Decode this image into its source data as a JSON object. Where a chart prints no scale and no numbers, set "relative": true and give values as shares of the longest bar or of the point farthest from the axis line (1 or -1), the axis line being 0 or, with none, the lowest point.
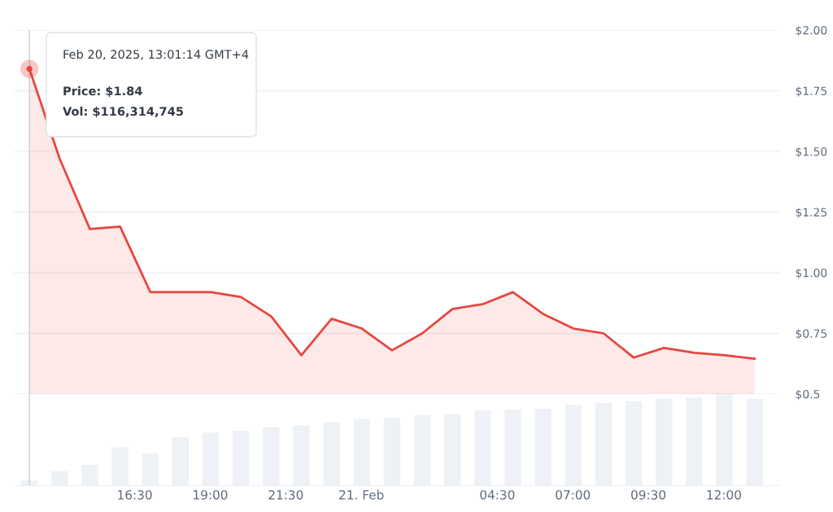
{
  "chart_data": [
    {
      "type": "area",
      "color": "#e5473f",
      "x": [
        "2025-02-20T13:01",
        "2025-02-20T14:01",
        "2025-02-20T15:01",
        "2025-02-20T16:01",
        "2025-02-20T17:01",
        "2025-02-20T18:01",
        "2025-02-20T19:01",
        "2025-02-20T20:01",
        "2025-02-20T21:01",
        "2025-02-20T22:01",
        "2025-02-20T23:01",
        "2025-02-21T00:01",
        "2025-02-21T01:01",
        "2025-02-21T02:01",
        "2025-02-21T03:01",
        "2025-02-21T04:01",
        "2025-02-21T05:01",
        "2025-02-21T06:01",
        "2025-02-21T07:01",
        "2025-02-21T08:01",
        "2025-02-21T09:01",
        "2025-02-21T10:01",
        "2025-02-21T11:01",
        "2025-02-21T12:01",
        "2025-02-21T13:01"
      ],
      "values": [
        1.84,
        1.47,
        1.18,
        1.19,
        0.92,
        0.92,
        0.92,
        0.9,
        0.82,
        0.66,
        0.81,
        0.77,
        0.68,
        0.75,
        0.85,
        0.87,
        0.92,
        0.83,
        0.77,
        0.75,
        0.65,
        0.69,
        0.67,
        0.66,
        0.645
      ],
      "xlim": [
        "2025-02-20T12:30",
        "2025-02-21T13:50"
      ],
      "ylim": [
        0.5,
        2.0
      ],
      "yticks": [
        {
          "value": 0.5,
          "label": "$0.5"
        },
        {
          "value": 0.75,
          "label": "$0.75"
        },
        {
          "value": 1.0,
          "label": "$1.00"
        },
        {
          "value": 1.25,
          "label": "$1.25"
        },
        {
          "value": 1.5,
          "label": "$1.50"
        },
        {
          "value": 1.75,
          "label": "$1.75"
        },
        {
          "value": 2.0,
          "label": "$2.00"
        }
      ],
      "tick_labels": "y",
      "grid": "y",
      "ref_lines": [
        {
          "axis": "x",
          "value": "2025-02-20T13:01",
          "label": null,
          "color": "#c8ccd2"
        }
      ],
      "annotations": [
        {
          "text": "Feb 20, 2025, 13:01:14 GMT+4",
          "x": "2025-02-20T13:01",
          "y": 1.84
        },
        "Price: $1.84",
        "Vol: $116,314,745"
      ]
    },
    {
      "type": "bar",
      "color": "#eef1f5",
      "relative": true,
      "x": [
        "2025-02-20T13:01",
        "2025-02-20T14:01",
        "2025-02-20T15:01",
        "2025-02-20T16:01",
        "2025-02-20T17:01",
        "2025-02-20T18:01",
        "2025-02-20T19:01",
        "2025-02-20T20:01",
        "2025-02-20T21:01",
        "2025-02-20T22:01",
        "2025-02-20T23:01",
        "2025-02-21T00:01",
        "2025-02-21T01:01",
        "2025-02-21T02:01",
        "2025-02-21T03:01",
        "2025-02-21T04:01",
        "2025-02-21T05:01",
        "2025-02-21T06:01",
        "2025-02-21T07:01",
        "2025-02-21T08:01",
        "2025-02-21T09:01",
        "2025-02-21T10:01",
        "2025-02-21T11:01",
        "2025-02-21T12:01",
        "2025-02-21T13:01"
      ],
      "values": [
        0.06,
        0.16,
        0.23,
        0.42,
        0.35,
        0.53,
        0.58,
        0.6,
        0.64,
        0.66,
        0.69,
        0.73,
        0.74,
        0.77,
        0.78,
        0.82,
        0.83,
        0.84,
        0.88,
        0.9,
        0.92,
        0.95,
        0.96,
        1.0,
        0.95
      ],
      "xlim": [
        "2025-02-20T12:30",
        "2025-02-21T13:50"
      ],
      "xticks": [
        {
          "value": "2025-02-20T16:30",
          "label": "16:30"
        },
        {
          "value": "2025-02-20T19:00",
          "label": "19:00"
        },
        {
          "value": "2025-02-20T21:30",
          "label": "21:30"
        },
        {
          "value": "2025-02-21T00:00",
          "label": "21. Feb"
        },
        {
          "value": "2025-02-21T04:30",
          "label": "04:30"
        },
        {
          "value": "2025-02-21T07:00",
          "label": "07:00"
        },
        {
          "value": "2025-02-21T09:30",
          "label": "09:30"
        },
        {
          "value": "2025-02-21T12:00",
          "label": "12:00"
        }
      ],
      "tick_labels": "x",
      "ref_lines": [
        {
          "axis": "x",
          "value": "2025-02-20T13:01",
          "label": null,
          "color": "#c8ccd2"
        }
      ]
    }
  ]
}
